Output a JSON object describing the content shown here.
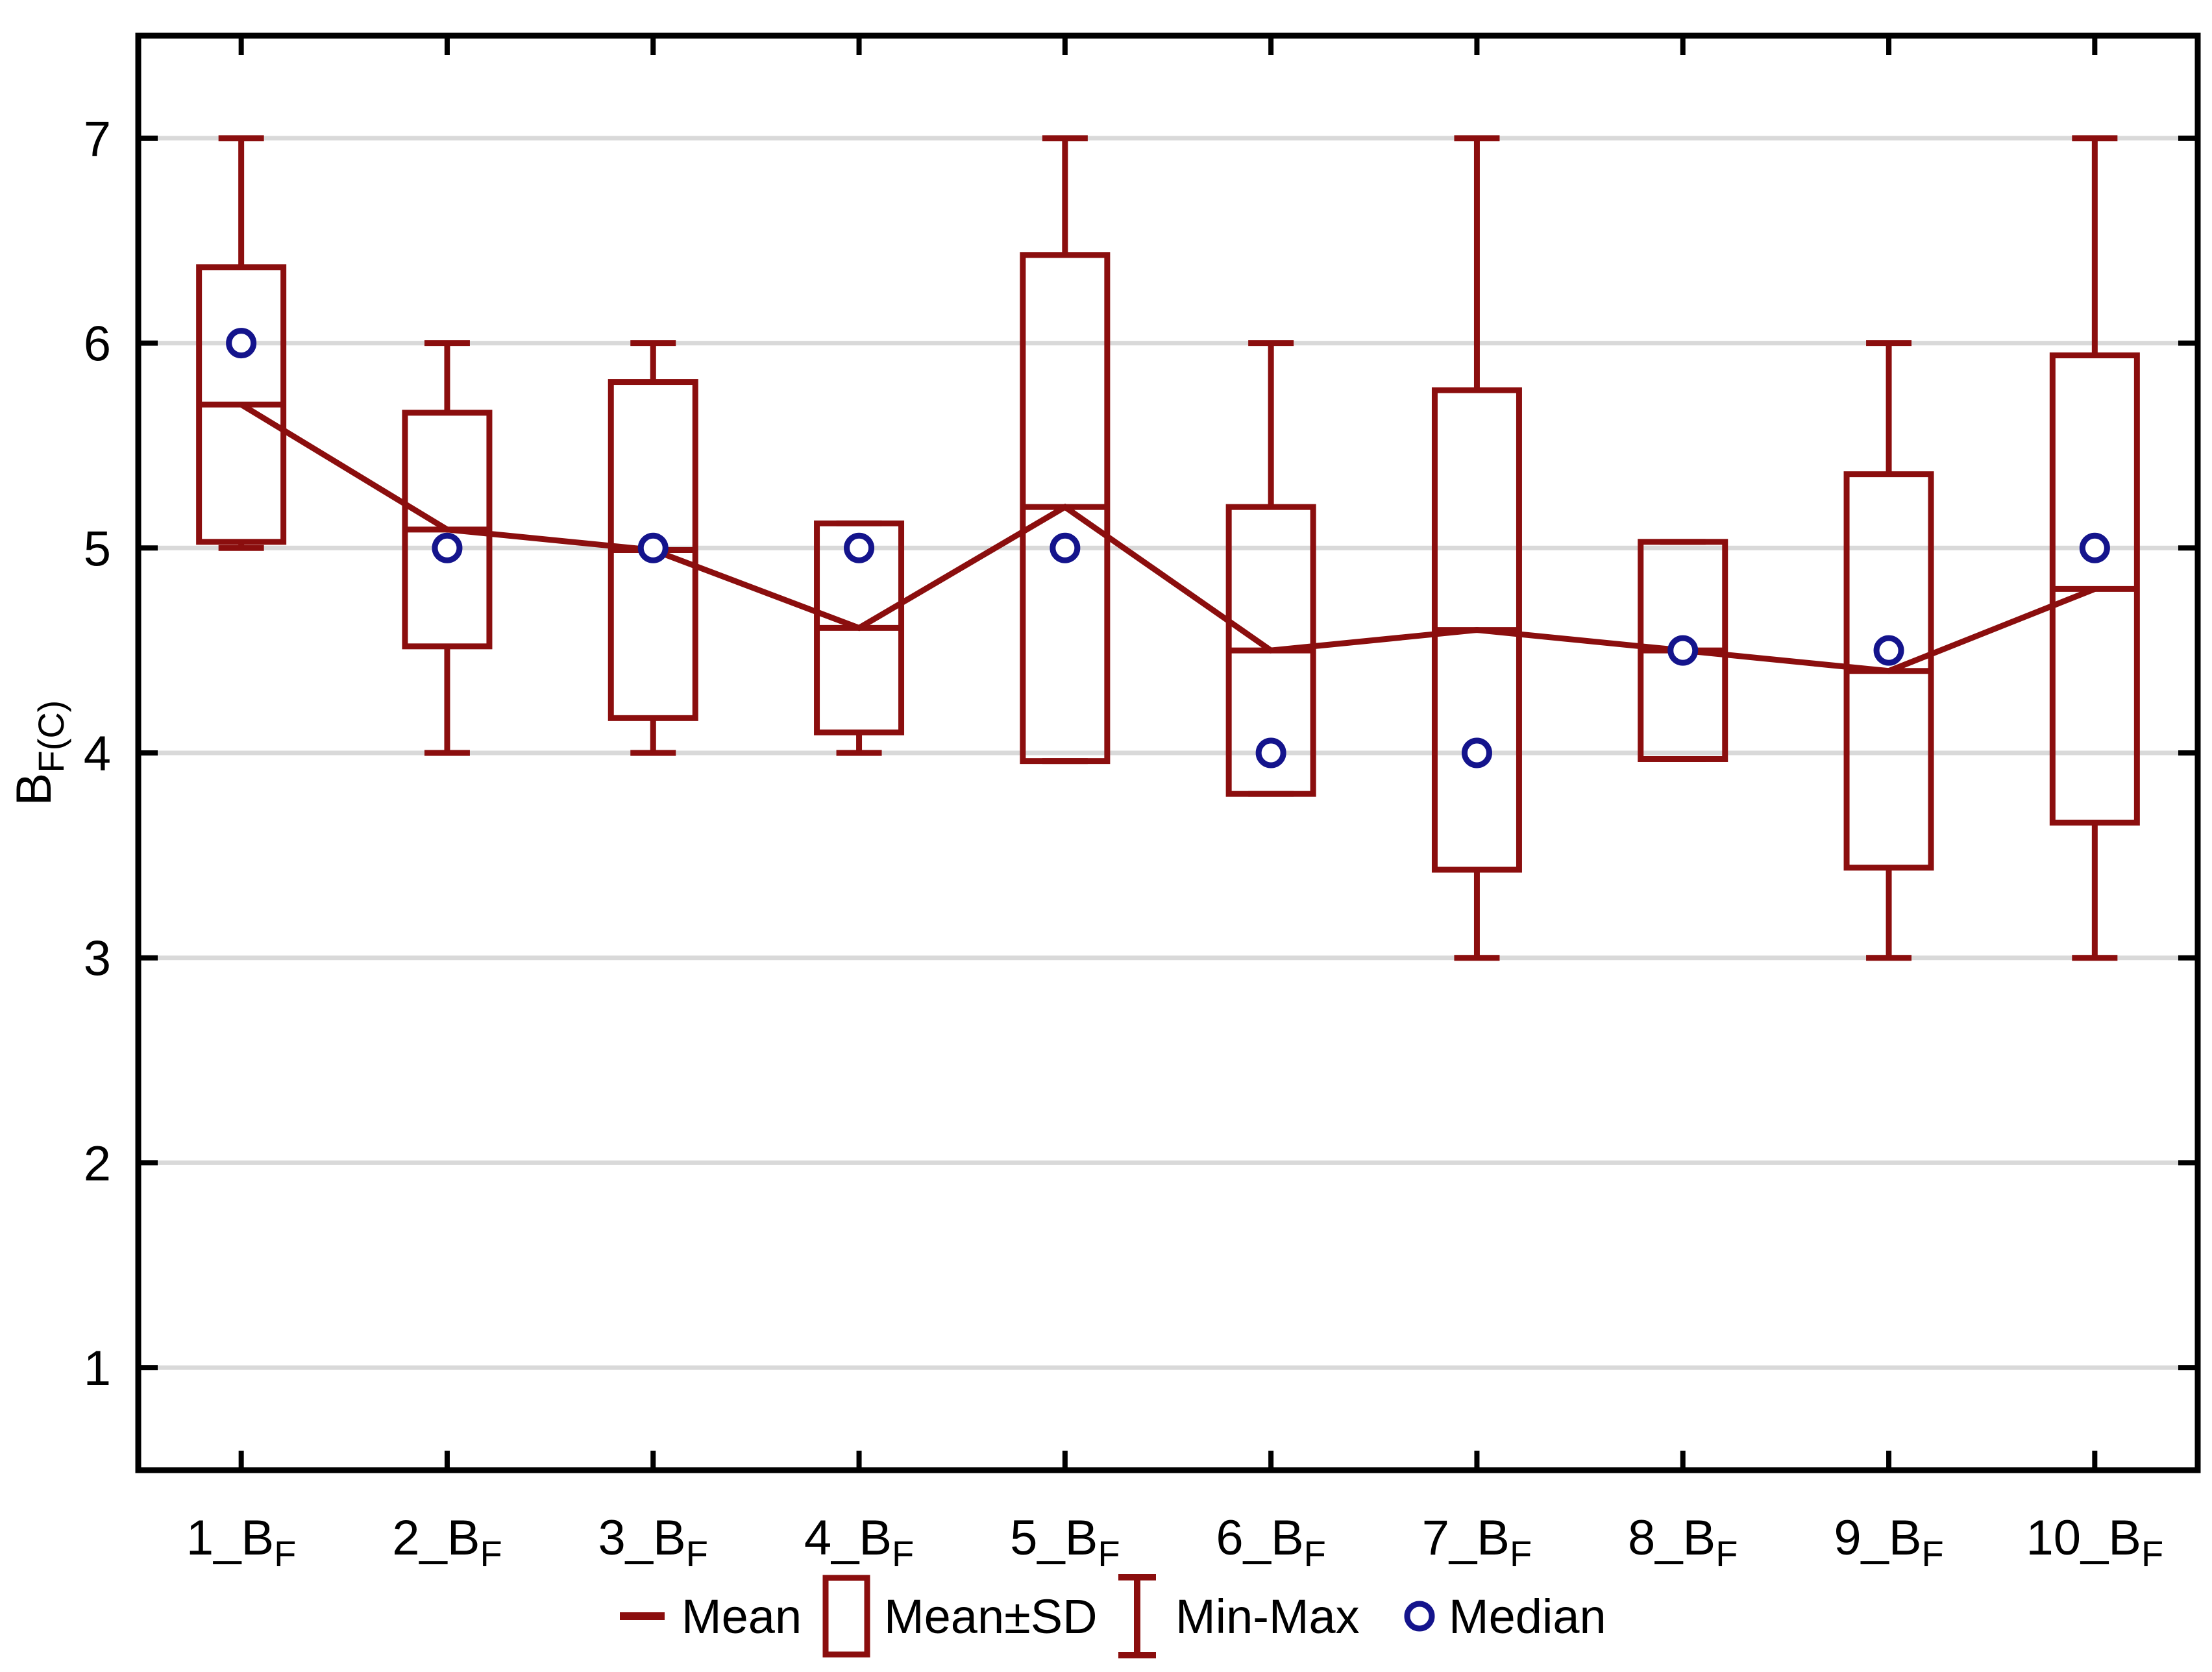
{
  "chart_data": {
    "type": "box",
    "title": "",
    "xlabel": "",
    "ylabel_main": "B",
    "ylabel_sub": "F(C)",
    "categories": [
      "1_B_F",
      "2_B_F",
      "3_B_F",
      "4_B_F",
      "5_B_F",
      "6_B_F",
      "7_B_F",
      "8_B_F",
      "9_B_F",
      "10_B_F"
    ],
    "y_ticks": [
      1,
      2,
      3,
      4,
      5,
      6,
      7
    ],
    "ylim": [
      0.5,
      7.5
    ],
    "grid": true,
    "legend_position": "bottom-center",
    "series": {
      "mean": [
        5.7,
        5.09,
        4.99,
        4.61,
        5.2,
        4.5,
        4.6,
        4.5,
        4.4,
        4.8
      ],
      "mean_minus_sd": [
        5.03,
        4.52,
        4.17,
        4.1,
        3.96,
        3.8,
        3.43,
        3.97,
        3.44,
        3.66
      ],
      "mean_plus_sd": [
        6.37,
        5.66,
        5.81,
        5.12,
        6.43,
        5.2,
        5.77,
        5.03,
        5.36,
        5.94
      ],
      "min": [
        5.0,
        4.0,
        4.0,
        4.0,
        3.96,
        3.8,
        3.0,
        3.97,
        3.0,
        3.0
      ],
      "max": [
        7.0,
        6.0,
        6.0,
        5.12,
        7.0,
        6.0,
        7.0,
        5.03,
        6.0,
        7.0
      ],
      "median": [
        6.0,
        5.0,
        5.0,
        5.0,
        5.0,
        4.0,
        4.0,
        4.5,
        4.5,
        5.0
      ]
    },
    "legend": [
      {
        "icon": "line",
        "label": "Mean"
      },
      {
        "icon": "box",
        "label": "Mean±SD"
      },
      {
        "icon": "whisker",
        "label": "Min-Max"
      },
      {
        "icon": "circle",
        "label": "Median"
      }
    ],
    "colors": {
      "series": "#8b0e0e",
      "median": "#14148c",
      "grid": "#d9d9d9",
      "axis": "#000000",
      "background": "#ffffff"
    }
  }
}
